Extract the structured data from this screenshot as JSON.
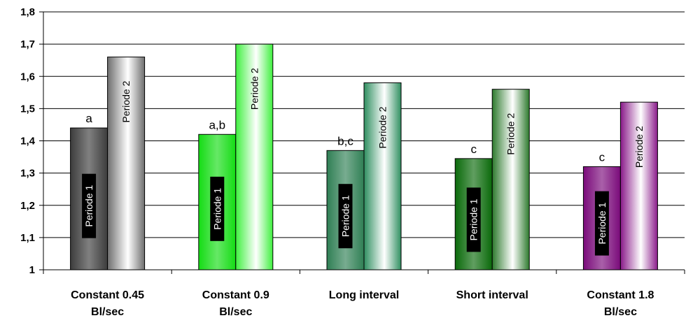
{
  "chart_data": {
    "type": "bar",
    "categories": [
      [
        "Constant 0.45",
        "Bl/sec"
      ],
      [
        "Constant 0.9",
        "Bl/sec"
      ],
      [
        "Long interval"
      ],
      [
        "Short interval"
      ],
      [
        "Constant 1.8",
        "Bl/sec"
      ]
    ],
    "series": [
      {
        "name": "Periode 1",
        "values": [
          1.44,
          1.42,
          1.37,
          1.345,
          1.32
        ],
        "colors": [
          "#3c3c3c",
          "#14dc14",
          "#2f7f54",
          "#0a6a0a",
          "#7a0a7a"
        ],
        "annotations": [
          "a",
          "a,b",
          "b,c",
          "c",
          "c"
        ]
      },
      {
        "name": "Periode 2",
        "values": [
          1.66,
          1.7,
          1.58,
          1.56,
          1.52
        ],
        "colors": [
          "#6e6e6e",
          "#3ef03e",
          "#2f8f60",
          "#2d7a2d",
          "#8a1a8a"
        ]
      }
    ],
    "title": "",
    "xlabel": "",
    "ylabel": "",
    "ylim": [
      1,
      1.8
    ],
    "yticks": [
      "1",
      "1,1",
      "1,2",
      "1,3",
      "1,4",
      "1,5",
      "1,6",
      "1,7",
      "1,8"
    ],
    "grid": true,
    "legend": "none"
  }
}
